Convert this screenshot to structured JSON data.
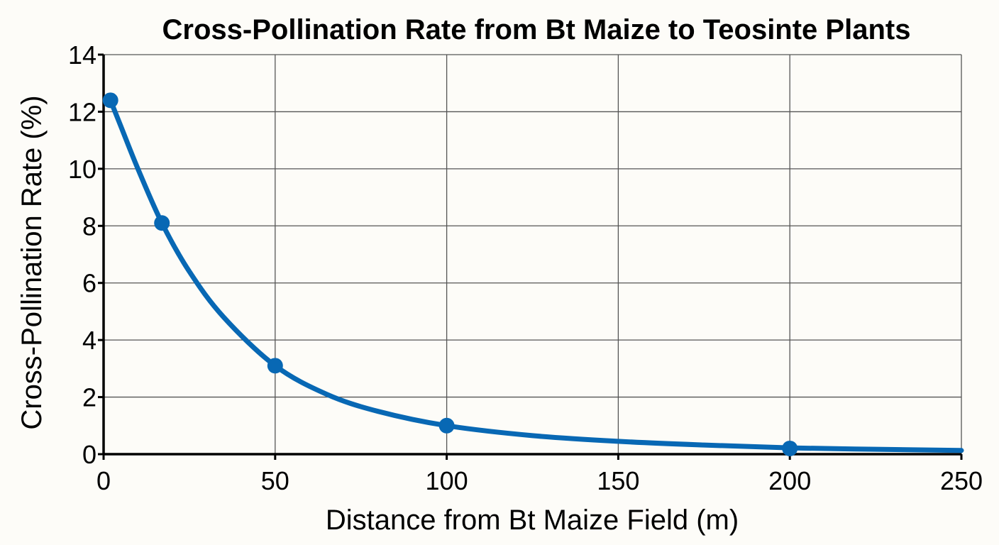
{
  "chart_data": {
    "type": "line",
    "title": "Cross-Pollination Rate from Bt Maize to Teosinte Plants",
    "xlabel": "Distance from Bt Maize Field (m)",
    "ylabel": "Cross-Pollination Rate (%)",
    "xlim": [
      0,
      250
    ],
    "ylim": [
      0,
      14
    ],
    "xticks": [
      0,
      50,
      100,
      150,
      200,
      250
    ],
    "yticks": [
      0,
      2,
      4,
      6,
      8,
      10,
      12,
      14
    ],
    "grid": true,
    "legend": "none",
    "series": [
      {
        "x": [
          2,
          17,
          50,
          100,
          200
        ],
        "values": [
          12.4,
          8.1,
          3.1,
          1.0,
          0.2
        ],
        "curve_x": [
          2,
          5,
          10,
          17,
          25,
          35,
          50,
          65,
          80,
          100,
          125,
          150,
          175,
          200,
          225,
          250
        ],
        "curve_y": [
          12.4,
          11.5,
          10.0,
          8.1,
          6.4,
          4.8,
          3.1,
          2.1,
          1.5,
          1.0,
          0.65,
          0.45,
          0.32,
          0.22,
          0.17,
          0.13
        ],
        "color": "#0868b4"
      }
    ]
  }
}
